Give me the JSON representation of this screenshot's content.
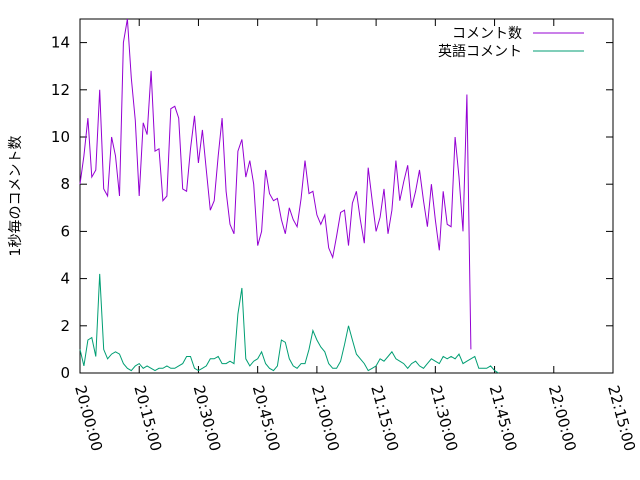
{
  "chart_data": {
    "type": "line",
    "title": "",
    "xlabel": "",
    "ylabel": "1秒毎のコメント数",
    "ylim": [
      0,
      15
    ],
    "yticks": [
      0,
      2,
      4,
      6,
      8,
      10,
      12,
      14
    ],
    "xticks": [
      "20:00:00",
      "20:15:00",
      "20:30:00",
      "20:45:00",
      "21:00:00",
      "21:15:00",
      "21:30:00",
      "21:45:00",
      "22:00:00",
      "22:15:00"
    ],
    "xlim": [
      "20:00:00",
      "22:15:00"
    ],
    "grid": false,
    "legend": "top-right",
    "colors": {
      "series1": "#9400d3",
      "series2": "#009e73"
    },
    "x_start": "20:00:00",
    "x_step_seconds": 60,
    "series": [
      {
        "name": "コメント数",
        "values": [
          8.0,
          9.2,
          10.8,
          8.3,
          8.6,
          12.0,
          7.8,
          7.5,
          10.0,
          9.2,
          7.5,
          14.0,
          15.0,
          12.5,
          10.7,
          7.5,
          10.6,
          10.1,
          12.8,
          9.4,
          9.5,
          7.3,
          7.5,
          11.2,
          11.3,
          10.8,
          7.8,
          7.7,
          9.5,
          10.9,
          8.9,
          10.3,
          8.6,
          6.9,
          7.3,
          9.2,
          10.8,
          7.7,
          6.3,
          5.9,
          9.4,
          9.9,
          8.3,
          9.0,
          8.0,
          5.4,
          6.0,
          8.6,
          7.6,
          7.3,
          7.4,
          6.5,
          5.9,
          7.0,
          6.5,
          6.2,
          7.4,
          9.0,
          7.6,
          7.7,
          6.7,
          6.3,
          6.7,
          5.3,
          4.9,
          5.8,
          6.8,
          6.9,
          5.4,
          7.2,
          7.7,
          6.5,
          5.5,
          8.7,
          7.3,
          6.0,
          6.6,
          7.8,
          5.9,
          6.9,
          9.0,
          7.3,
          8.1,
          8.8,
          7.0,
          7.7,
          8.6,
          7.3,
          6.2,
          8.0,
          6.5,
          5.2,
          7.7,
          6.3,
          6.2,
          10.0,
          8.3,
          6.0,
          11.8,
          1.0
        ]
      },
      {
        "name": "英語コメント",
        "values": [
          1.0,
          0.3,
          1.4,
          1.5,
          0.7,
          4.2,
          1.0,
          0.6,
          0.8,
          0.9,
          0.8,
          0.4,
          0.2,
          0.1,
          0.3,
          0.4,
          0.2,
          0.3,
          0.2,
          0.1,
          0.2,
          0.2,
          0.3,
          0.2,
          0.2,
          0.3,
          0.4,
          0.7,
          0.7,
          0.2,
          0.1,
          0.2,
          0.3,
          0.6,
          0.6,
          0.7,
          0.4,
          0.4,
          0.5,
          0.4,
          2.5,
          3.6,
          0.6,
          0.3,
          0.5,
          0.6,
          0.9,
          0.4,
          0.2,
          0.1,
          0.3,
          1.4,
          1.3,
          0.6,
          0.3,
          0.2,
          0.4,
          0.4,
          1.0,
          1.8,
          1.4,
          1.1,
          0.9,
          0.4,
          0.2,
          0.2,
          0.5,
          1.2,
          2.0,
          1.4,
          0.8,
          0.6,
          0.4,
          0.1,
          0.2,
          0.3,
          0.6,
          0.5,
          0.7,
          0.9,
          0.6,
          0.5,
          0.4,
          0.2,
          0.4,
          0.5,
          0.3,
          0.2,
          0.4,
          0.6,
          0.5,
          0.4,
          0.7,
          0.6,
          0.7,
          0.6,
          0.8,
          0.4,
          0.5,
          0.6,
          0.7,
          0.2,
          0.2,
          0.2,
          0.3,
          0.1,
          0.0
        ]
      }
    ]
  }
}
